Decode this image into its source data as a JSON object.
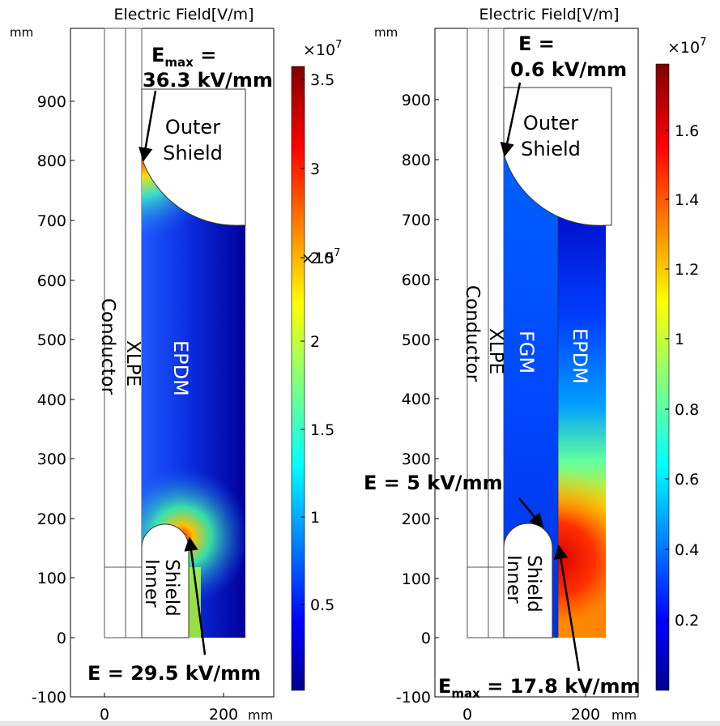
{
  "panels": [
    {
      "title": "Electric Field[V/m]",
      "y_unit": "mm",
      "x_unit": "mm",
      "y_ticks": [
        "900",
        "800",
        "700",
        "600",
        "500",
        "400",
        "300",
        "200",
        "100",
        "0",
        "-100"
      ],
      "x_ticks": [
        "0",
        "200"
      ],
      "labels": {
        "outer_shield": [
          "Outer",
          "Shield"
        ],
        "inner_shield": [
          "Inner",
          "Shield"
        ],
        "conductor": "Conductor",
        "xlpe": "XLPE",
        "epdm": "EPDM"
      },
      "annotations": {
        "top_base": "E",
        "top_sub": "max",
        "top_rest": " =",
        "top_value": "36.3 kV/mm",
        "bottom": "E = 29.5 kV/mm"
      },
      "colorbar": {
        "multiplier_base": "×10",
        "multiplier_exp": "7",
        "ticks": [
          "3.5",
          "3",
          "2.5",
          "2",
          "1.5",
          "1",
          "0.5"
        ],
        "mid_multiplier_base": "×10",
        "mid_multiplier_exp": "7"
      }
    },
    {
      "title": "Electric Field[V/m]",
      "y_unit": "mm",
      "x_unit": "mm",
      "y_ticks": [
        "900",
        "800",
        "700",
        "600",
        "500",
        "400",
        "300",
        "200",
        "100",
        "0",
        "-100"
      ],
      "x_ticks": [
        "0",
        "200"
      ],
      "labels": {
        "outer_shield": [
          "Outer",
          "Shield"
        ],
        "inner_shield": [
          "Inner",
          "Shield"
        ],
        "conductor": "Conductor",
        "xlpe": "XLPE",
        "fgm": "FGM",
        "epdm": "EPDM"
      },
      "annotations": {
        "top_line1": "E =",
        "top_value": "0.6 kV/mm",
        "middle": "E = 5 kV/mm",
        "bottom_base": "E",
        "bottom_sub": "max",
        "bottom_rest": " = 17.8 kV/mm"
      },
      "colorbar": {
        "multiplier_base": "×10",
        "multiplier_exp": "7",
        "ticks": [
          "1.6",
          "1.4",
          "1.2",
          "1",
          "0.8",
          "0.6",
          "0.4",
          "0.2"
        ]
      }
    }
  ],
  "colors": {
    "jet_dark_blue": "#00008f",
    "jet_blue": "#0040ff",
    "jet_cyan": "#00e0ff",
    "jet_yellow": "#f0f000",
    "jet_red": "#ff1000",
    "jet_dark_red": "#800000"
  }
}
